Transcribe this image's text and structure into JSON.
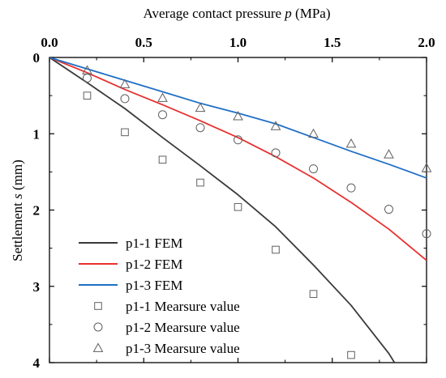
{
  "chart_data": {
    "type": "line",
    "xlabel_prefix": "Average contact pressure ",
    "xlabel_symbol": "p",
    "xlabel_suffix": " (MPa)",
    "ylabel_prefix": "Settlement ",
    "ylabel_symbol": "s",
    "ylabel_suffix": " (mm)",
    "xlim": [
      0,
      2.0
    ],
    "ylim": [
      0,
      4
    ],
    "y_inverted": true,
    "x_axis_position": "top",
    "x_ticks": [
      0.0,
      0.5,
      1.0,
      1.5,
      2.0
    ],
    "x_tick_labels": [
      "0.0",
      "0.5",
      "1.0",
      "1.5",
      "2.0"
    ],
    "y_ticks": [
      0,
      1,
      2,
      3,
      4
    ],
    "y_tick_labels": [
      "0",
      "1",
      "2",
      "3",
      "4"
    ],
    "grid": false,
    "legend_position": "bottom-left",
    "series": [
      {
        "name": "p1-1 FEM",
        "kind": "line",
        "color": "#3a3a3a",
        "points": [
          [
            0,
            0
          ],
          [
            0.2,
            0.33
          ],
          [
            0.4,
            0.67
          ],
          [
            0.6,
            1.05
          ],
          [
            0.8,
            1.42
          ],
          [
            1.0,
            1.8
          ],
          [
            1.2,
            2.22
          ],
          [
            1.4,
            2.72
          ],
          [
            1.6,
            3.25
          ],
          [
            1.8,
            3.88
          ],
          [
            1.83,
            4.0
          ]
        ]
      },
      {
        "name": "p1-2 FEM",
        "kind": "line",
        "color": "#e8312f",
        "points": [
          [
            0,
            0
          ],
          [
            0.2,
            0.2
          ],
          [
            0.4,
            0.42
          ],
          [
            0.6,
            0.62
          ],
          [
            0.8,
            0.83
          ],
          [
            1.0,
            1.05
          ],
          [
            1.2,
            1.3
          ],
          [
            1.4,
            1.58
          ],
          [
            1.6,
            1.9
          ],
          [
            1.8,
            2.25
          ],
          [
            2.0,
            2.66
          ]
        ]
      },
      {
        "name": "p1-3 FEM",
        "kind": "line",
        "color": "#1f6fc5",
        "points": [
          [
            0,
            0
          ],
          [
            0.2,
            0.15
          ],
          [
            0.4,
            0.3
          ],
          [
            0.6,
            0.45
          ],
          [
            0.8,
            0.6
          ],
          [
            1.0,
            0.73
          ],
          [
            1.2,
            0.87
          ],
          [
            1.4,
            1.05
          ],
          [
            1.6,
            1.23
          ],
          [
            1.8,
            1.4
          ],
          [
            2.0,
            1.58
          ]
        ]
      },
      {
        "name": "p1-1 Mearsure value",
        "kind": "scatter",
        "marker": "square",
        "color": "#606060",
        "points": [
          [
            0.2,
            0.5
          ],
          [
            0.4,
            0.98
          ],
          [
            0.6,
            1.34
          ],
          [
            0.8,
            1.64
          ],
          [
            1.0,
            1.96
          ],
          [
            1.2,
            2.52
          ],
          [
            1.4,
            3.1
          ],
          [
            1.6,
            3.9
          ]
        ]
      },
      {
        "name": "p1-2 Mearsure value",
        "kind": "scatter",
        "marker": "circle",
        "color": "#606060",
        "points": [
          [
            0.2,
            0.27
          ],
          [
            0.4,
            0.54
          ],
          [
            0.6,
            0.75
          ],
          [
            0.8,
            0.92
          ],
          [
            1.0,
            1.08
          ],
          [
            1.2,
            1.25
          ],
          [
            1.4,
            1.46
          ],
          [
            1.6,
            1.71
          ],
          [
            1.8,
            1.99
          ],
          [
            2.0,
            2.31
          ]
        ]
      },
      {
        "name": "p1-3 Mearsure value",
        "kind": "scatter",
        "marker": "triangle",
        "color": "#606060",
        "points": [
          [
            0.2,
            0.17
          ],
          [
            0.4,
            0.35
          ],
          [
            0.6,
            0.53
          ],
          [
            0.8,
            0.66
          ],
          [
            1.0,
            0.77
          ],
          [
            1.2,
            0.9
          ],
          [
            1.4,
            1.0
          ],
          [
            1.6,
            1.13
          ],
          [
            1.8,
            1.27
          ],
          [
            2.0,
            1.45
          ]
        ]
      }
    ]
  }
}
